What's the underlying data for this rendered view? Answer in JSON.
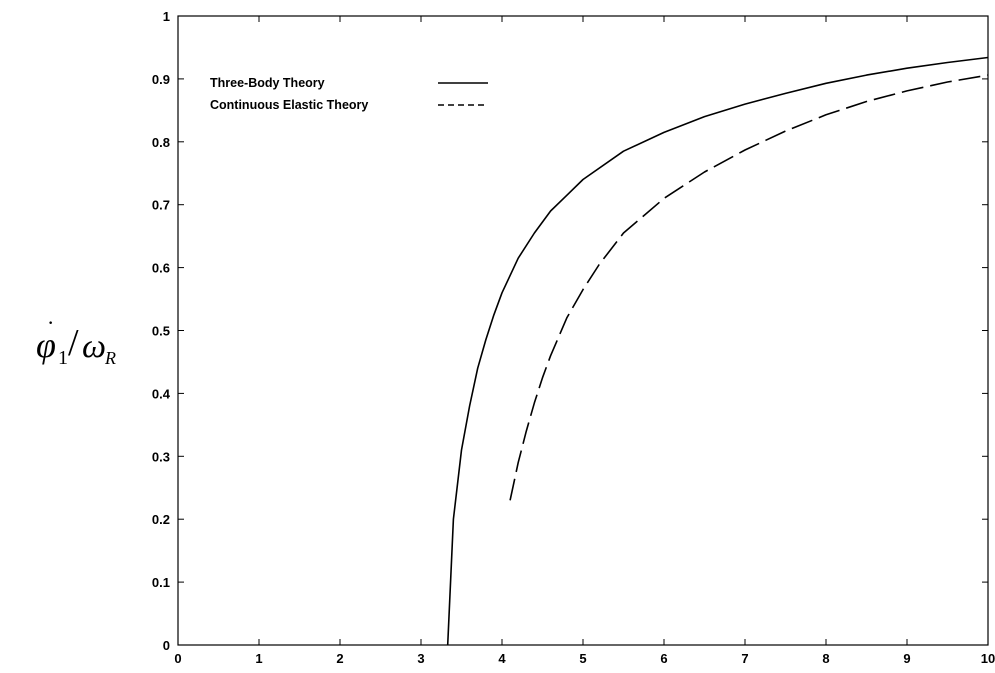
{
  "chart_data": {
    "type": "line",
    "xlabel": "",
    "ylabel": {
      "main": "φ",
      "sub1": "1",
      "slash": "/",
      "omega": "ω",
      "sub2": "R"
    },
    "xlim": [
      0,
      10
    ],
    "ylim": [
      0,
      1
    ],
    "xticks": [
      "0",
      "1",
      "2",
      "3",
      "4",
      "5",
      "6",
      "7",
      "8",
      "9",
      "10"
    ],
    "yticks": [
      "0",
      "0.1",
      "0.2",
      "0.3",
      "0.4",
      "0.5",
      "0.6",
      "0.7",
      "0.8",
      "0.9",
      "1"
    ],
    "grid": false,
    "legend_position": "top-left",
    "series": [
      {
        "name": "Three-Body Theory",
        "style": "solid",
        "color": "#000000",
        "x": [
          3.33,
          3.4,
          3.5,
          3.6,
          3.7,
          3.8,
          3.9,
          4.0,
          4.2,
          4.4,
          4.6,
          4.8,
          5.0,
          5.5,
          6.0,
          6.5,
          7.0,
          7.5,
          8.0,
          8.5,
          9.0,
          9.5,
          10.0
        ],
        "y": [
          0.0,
          0.2,
          0.31,
          0.38,
          0.44,
          0.485,
          0.525,
          0.56,
          0.615,
          0.655,
          0.69,
          0.715,
          0.74,
          0.785,
          0.815,
          0.84,
          0.86,
          0.877,
          0.893,
          0.906,
          0.917,
          0.926,
          0.934
        ]
      },
      {
        "name": "Continuous Elastic Theory",
        "style": "dashed",
        "color": "#000000",
        "x": [
          4.1,
          4.2,
          4.3,
          4.4,
          4.5,
          4.6,
          4.8,
          5.0,
          5.2,
          5.5,
          6.0,
          6.5,
          7.0,
          7.5,
          8.0,
          8.5,
          9.0,
          9.5,
          10.0
        ],
        "y": [
          0.23,
          0.29,
          0.34,
          0.385,
          0.425,
          0.46,
          0.52,
          0.565,
          0.605,
          0.655,
          0.71,
          0.752,
          0.787,
          0.817,
          0.843,
          0.864,
          0.881,
          0.895,
          0.906
        ]
      }
    ]
  }
}
